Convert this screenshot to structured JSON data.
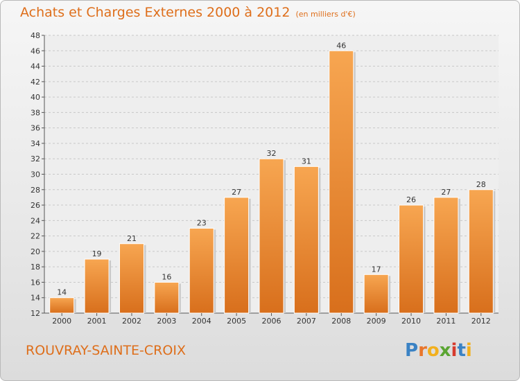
{
  "chart_data": {
    "type": "bar",
    "title": "Achats et Charges Externes 2000 à 2012",
    "subtitle": "(en milliers d'€)",
    "categories": [
      "2000",
      "2001",
      "2002",
      "2003",
      "2004",
      "2005",
      "2006",
      "2007",
      "2008",
      "2009",
      "2010",
      "2011",
      "2012"
    ],
    "values": [
      14,
      19,
      21,
      16,
      23,
      27,
      32,
      31,
      46,
      17,
      26,
      27,
      28
    ],
    "ylim": [
      12,
      48
    ],
    "yticks": [
      12,
      14,
      16,
      18,
      20,
      22,
      24,
      26,
      28,
      30,
      32,
      34,
      36,
      38,
      40,
      42,
      44,
      46,
      48
    ],
    "grid": true,
    "bar_color": "#f0933a",
    "title_color": "#de6e1a"
  },
  "footer": {
    "commune": "ROUVRAY-SAINTE-CROIX",
    "logo_letters": [
      "P",
      "r",
      "o",
      "x",
      "i",
      "t",
      "i"
    ],
    "logo_colors": [
      "#3a82c4",
      "#e9762b",
      "#f2b01e",
      "#5aa532",
      "#d63b2e",
      "#3a82c4",
      "#f2b01e"
    ]
  }
}
